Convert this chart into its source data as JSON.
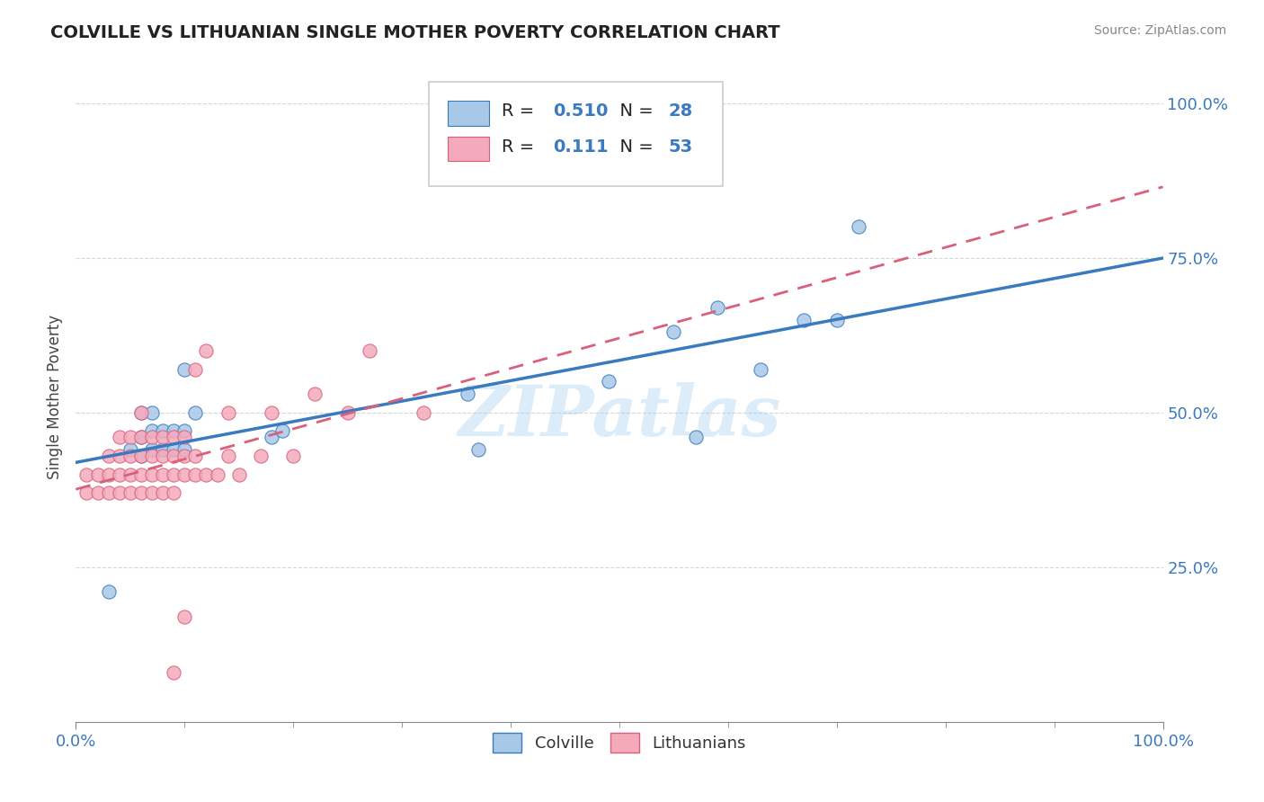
{
  "title": "COLVILLE VS LITHUANIAN SINGLE MOTHER POVERTY CORRELATION CHART",
  "source_text": "Source: ZipAtlas.com",
  "ylabel": "Single Mother Poverty",
  "colville_R": 0.51,
  "colville_N": 28,
  "lithuanian_R": 0.111,
  "lithuanian_N": 53,
  "colville_color": "#a8c8e8",
  "lithuanian_color": "#f4aabb",
  "colville_line_color": "#3a7abf",
  "lithuanian_line_color": "#d9607a",
  "lithuanian_line_style": "--",
  "watermark": "ZIPatlas",
  "colville_scatter_x": [
    0.03,
    0.05,
    0.06,
    0.06,
    0.06,
    0.07,
    0.07,
    0.07,
    0.08,
    0.08,
    0.09,
    0.09,
    0.1,
    0.1,
    0.1,
    0.11,
    0.18,
    0.19,
    0.36,
    0.37,
    0.49,
    0.55,
    0.57,
    0.59,
    0.63,
    0.67,
    0.7,
    0.72
  ],
  "colville_scatter_y": [
    0.21,
    0.44,
    0.43,
    0.46,
    0.5,
    0.44,
    0.47,
    0.5,
    0.44,
    0.47,
    0.44,
    0.47,
    0.44,
    0.47,
    0.57,
    0.5,
    0.46,
    0.47,
    0.53,
    0.44,
    0.55,
    0.63,
    0.46,
    0.67,
    0.57,
    0.65,
    0.65,
    0.8
  ],
  "lithuanian_scatter_x": [
    0.01,
    0.01,
    0.02,
    0.02,
    0.03,
    0.03,
    0.03,
    0.04,
    0.04,
    0.04,
    0.04,
    0.05,
    0.05,
    0.05,
    0.05,
    0.06,
    0.06,
    0.06,
    0.06,
    0.06,
    0.07,
    0.07,
    0.07,
    0.07,
    0.08,
    0.08,
    0.08,
    0.08,
    0.09,
    0.09,
    0.09,
    0.09,
    0.1,
    0.1,
    0.1,
    0.11,
    0.11,
    0.11,
    0.12,
    0.12,
    0.13,
    0.14,
    0.14,
    0.15,
    0.17,
    0.18,
    0.2,
    0.22,
    0.25,
    0.27,
    0.32,
    0.1,
    0.09
  ],
  "lithuanian_scatter_y": [
    0.37,
    0.4,
    0.37,
    0.4,
    0.37,
    0.4,
    0.43,
    0.37,
    0.4,
    0.43,
    0.46,
    0.37,
    0.4,
    0.43,
    0.46,
    0.37,
    0.4,
    0.43,
    0.46,
    0.5,
    0.37,
    0.4,
    0.43,
    0.46,
    0.37,
    0.4,
    0.43,
    0.46,
    0.37,
    0.4,
    0.43,
    0.46,
    0.4,
    0.43,
    0.46,
    0.4,
    0.43,
    0.57,
    0.4,
    0.6,
    0.4,
    0.43,
    0.5,
    0.4,
    0.43,
    0.5,
    0.43,
    0.53,
    0.5,
    0.6,
    0.5,
    0.17,
    0.08
  ]
}
